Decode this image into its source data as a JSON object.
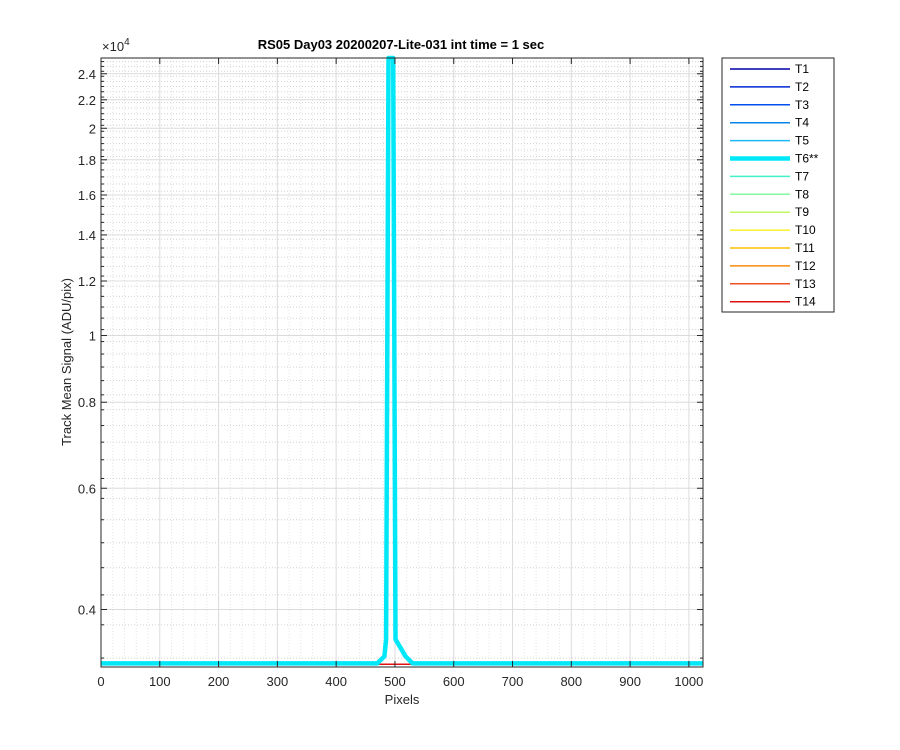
{
  "chart_data": {
    "type": "line",
    "title": "RS05 Day03 20200207-Lite-031 int time = 1 sec",
    "xlabel": "Pixels",
    "ylabel": "Track Mean Signal (ADU/pix)",
    "y_exponent_label": "×10",
    "y_exponent_power": "4",
    "y_scale": "log",
    "xlim": [
      0,
      1024
    ],
    "ylim": [
      3300,
      25300
    ],
    "grid": "major and minor",
    "legend_placement": "outside-right",
    "x_ticks": [
      0,
      100,
      200,
      300,
      400,
      500,
      600,
      700,
      800,
      900,
      1000
    ],
    "x_tick_labels": [
      "0",
      "100",
      "200",
      "300",
      "400",
      "500",
      "600",
      "700",
      "800",
      "900",
      "1000"
    ],
    "y_ticks": [
      4000,
      6000,
      8000,
      10000,
      12000,
      14000,
      16000,
      18000,
      20000,
      22000,
      24000
    ],
    "y_tick_labels": [
      "0.4",
      "0.6",
      "0.8",
      "1",
      "1.2",
      "1.4",
      "1.6",
      "1.8",
      "2",
      "2.2",
      "2.4"
    ],
    "series": [
      {
        "name": "T1",
        "color": "#0000a8",
        "width": 1.5,
        "baseline": 3330
      },
      {
        "name": "T2",
        "color": "#0024d6",
        "width": 1.5,
        "baseline": 3330
      },
      {
        "name": "T3",
        "color": "#0050f0",
        "width": 1.5,
        "baseline": 3330
      },
      {
        "name": "T4",
        "color": "#0a84e8",
        "width": 1.5,
        "baseline": 3330
      },
      {
        "name": "T5",
        "color": "#1cb8f4",
        "width": 1.5,
        "baseline": 3330
      },
      {
        "name": "T6**",
        "color": "#00e8f8",
        "width": 4.5,
        "baseline": 3340,
        "peak": {
          "x": 493,
          "y": 25300,
          "half_width": 4
        },
        "shoulder": {
          "x_from": 470,
          "x_to": 530,
          "y": 3420
        }
      },
      {
        "name": "T7",
        "color": "#40f0c8",
        "width": 1.5,
        "baseline": 3330
      },
      {
        "name": "T8",
        "color": "#80f8a0",
        "width": 1.5,
        "baseline": 3330
      },
      {
        "name": "T9",
        "color": "#c0f860",
        "width": 1.5,
        "baseline": 3330
      },
      {
        "name": "T10",
        "color": "#f8f030",
        "width": 1.5,
        "baseline": 3330
      },
      {
        "name": "T11",
        "color": "#f8c000",
        "width": 1.5,
        "baseline": 3330
      },
      {
        "name": "T12",
        "color": "#f88c10",
        "width": 1.5,
        "baseline": 3330
      },
      {
        "name": "T13",
        "color": "#f05020",
        "width": 1.5,
        "baseline": 3330
      },
      {
        "name": "T14",
        "color": "#e01010",
        "width": 1.5,
        "baseline": 3330
      }
    ]
  }
}
